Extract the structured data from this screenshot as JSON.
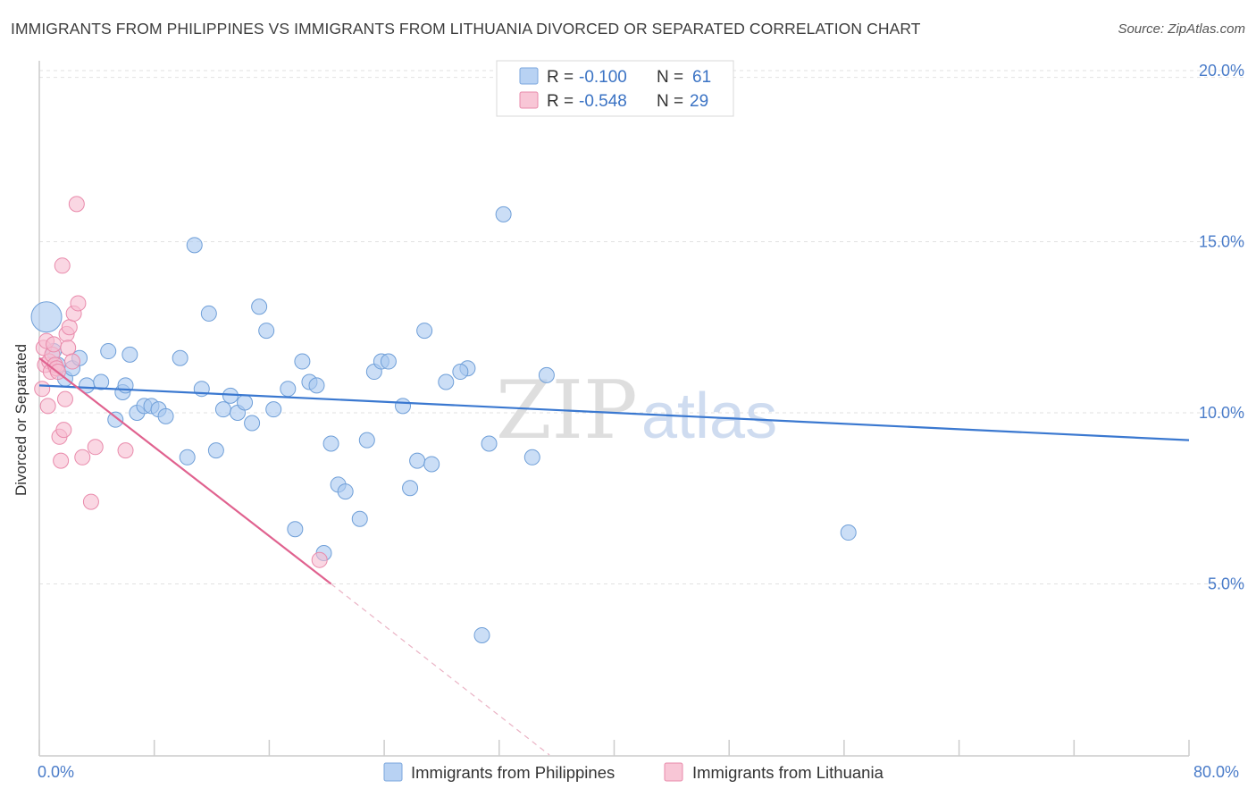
{
  "title": "IMMIGRANTS FROM PHILIPPINES VS IMMIGRANTS FROM LITHUANIA DIVORCED OR SEPARATED CORRELATION CHART",
  "source": "Source: ZipAtlas.com",
  "watermark": {
    "zip": "ZIP",
    "atlas": "atlas"
  },
  "legend_box": {
    "rows": [
      {
        "r_label": "R =",
        "r_value": "-0.100",
        "n_label": "N =",
        "n_value": "61"
      },
      {
        "r_label": "R =",
        "r_value": "-0.548",
        "n_label": "N =",
        "n_value": "29"
      }
    ]
  },
  "chart_data": {
    "type": "scatter",
    "title": "IMMIGRANTS FROM PHILIPPINES VS IMMIGRANTS FROM LITHUANIA DIVORCED OR SEPARATED CORRELATION CHART",
    "xlabel": "",
    "ylabel": "Divorced or Separated",
    "xlim": [
      0,
      80
    ],
    "ylim": [
      0,
      20
    ],
    "x_tick_labels": [
      "0.0%",
      "80.0%"
    ],
    "y_tick_labels": [
      "5.0%",
      "10.0%",
      "15.0%",
      "20.0%"
    ],
    "y_tick_values": [
      5,
      10,
      15,
      20
    ],
    "grid": "horizontal dashed",
    "legend_position": "bottom",
    "series": [
      {
        "name": "Immigrants from Philippines",
        "color": "#a9c8f0",
        "stroke": "#6f9fd8",
        "trend": {
          "x": [
            0,
            80
          ],
          "y": [
            10.8,
            9.2
          ],
          "color": "#3a78d0"
        },
        "points": [
          [
            0.5,
            12.8
          ],
          [
            1.0,
            11.8
          ],
          [
            1.3,
            11.4
          ],
          [
            1.8,
            11.0
          ],
          [
            2.3,
            11.3
          ],
          [
            2.8,
            11.6
          ],
          [
            3.3,
            10.8
          ],
          [
            4.3,
            10.9
          ],
          [
            4.8,
            11.8
          ],
          [
            5.3,
            9.8
          ],
          [
            5.8,
            10.6
          ],
          [
            6.3,
            11.7
          ],
          [
            6.8,
            10.0
          ],
          [
            7.3,
            10.2
          ],
          [
            7.8,
            10.2
          ],
          [
            8.3,
            10.1
          ],
          [
            8.8,
            9.9
          ],
          [
            9.8,
            11.6
          ],
          [
            10.3,
            8.7
          ],
          [
            10.8,
            14.9
          ],
          [
            11.3,
            10.7
          ],
          [
            11.8,
            12.9
          ],
          [
            12.3,
            8.9
          ],
          [
            12.8,
            10.1
          ],
          [
            13.3,
            10.5
          ],
          [
            13.8,
            10.0
          ],
          [
            14.3,
            10.3
          ],
          [
            14.8,
            9.7
          ],
          [
            15.3,
            13.1
          ],
          [
            15.8,
            12.4
          ],
          [
            16.3,
            10.1
          ],
          [
            17.3,
            10.7
          ],
          [
            17.8,
            6.6
          ],
          [
            18.3,
            11.5
          ],
          [
            18.8,
            10.9
          ],
          [
            19.3,
            10.8
          ],
          [
            20.3,
            9.1
          ],
          [
            20.8,
            7.9
          ],
          [
            21.3,
            7.7
          ],
          [
            22.3,
            6.9
          ],
          [
            22.8,
            9.2
          ],
          [
            23.3,
            11.2
          ],
          [
            23.8,
            11.5
          ],
          [
            24.3,
            11.5
          ],
          [
            25.3,
            10.2
          ],
          [
            25.8,
            7.8
          ],
          [
            26.3,
            8.6
          ],
          [
            26.8,
            12.4
          ],
          [
            27.3,
            8.5
          ],
          [
            28.3,
            10.9
          ],
          [
            29.8,
            11.3
          ],
          [
            30.8,
            3.5
          ],
          [
            31.3,
            9.1
          ],
          [
            32.3,
            15.8
          ],
          [
            34.3,
            8.7
          ],
          [
            35.3,
            11.1
          ],
          [
            19.8,
            5.9
          ],
          [
            47.3,
            19.7
          ],
          [
            56.3,
            6.5
          ],
          [
            6.0,
            10.8
          ],
          [
            29.3,
            11.2
          ]
        ]
      },
      {
        "name": "Immigrants from Lithuania",
        "color": "#f6bcd0",
        "stroke": "#e98aab",
        "trend": {
          "x": [
            0,
            20.3
          ],
          "y": [
            11.6,
            5.0
          ],
          "color": "#e0628f"
        },
        "trend_dashed": {
          "x": [
            20.3,
            35.5
          ],
          "y": [
            5.0,
            0
          ],
          "color": "#eab2c4"
        },
        "points": [
          [
            0.2,
            10.7
          ],
          [
            0.3,
            11.9
          ],
          [
            0.4,
            11.4
          ],
          [
            0.5,
            12.1
          ],
          [
            0.6,
            10.2
          ],
          [
            0.7,
            11.5
          ],
          [
            0.8,
            11.2
          ],
          [
            0.9,
            11.7
          ],
          [
            1.0,
            12.0
          ],
          [
            1.1,
            11.4
          ],
          [
            1.2,
            11.3
          ],
          [
            1.3,
            11.2
          ],
          [
            1.4,
            9.3
          ],
          [
            1.5,
            8.6
          ],
          [
            1.6,
            14.3
          ],
          [
            1.7,
            9.5
          ],
          [
            1.8,
            10.4
          ],
          [
            1.9,
            12.3
          ],
          [
            2.0,
            11.9
          ],
          [
            2.1,
            12.5
          ],
          [
            2.3,
            11.5
          ],
          [
            2.4,
            12.9
          ],
          [
            2.6,
            16.1
          ],
          [
            2.7,
            13.2
          ],
          [
            3.0,
            8.7
          ],
          [
            3.6,
            7.4
          ],
          [
            3.9,
            9.0
          ],
          [
            6.0,
            8.9
          ],
          [
            19.5,
            5.7
          ]
        ]
      }
    ]
  }
}
